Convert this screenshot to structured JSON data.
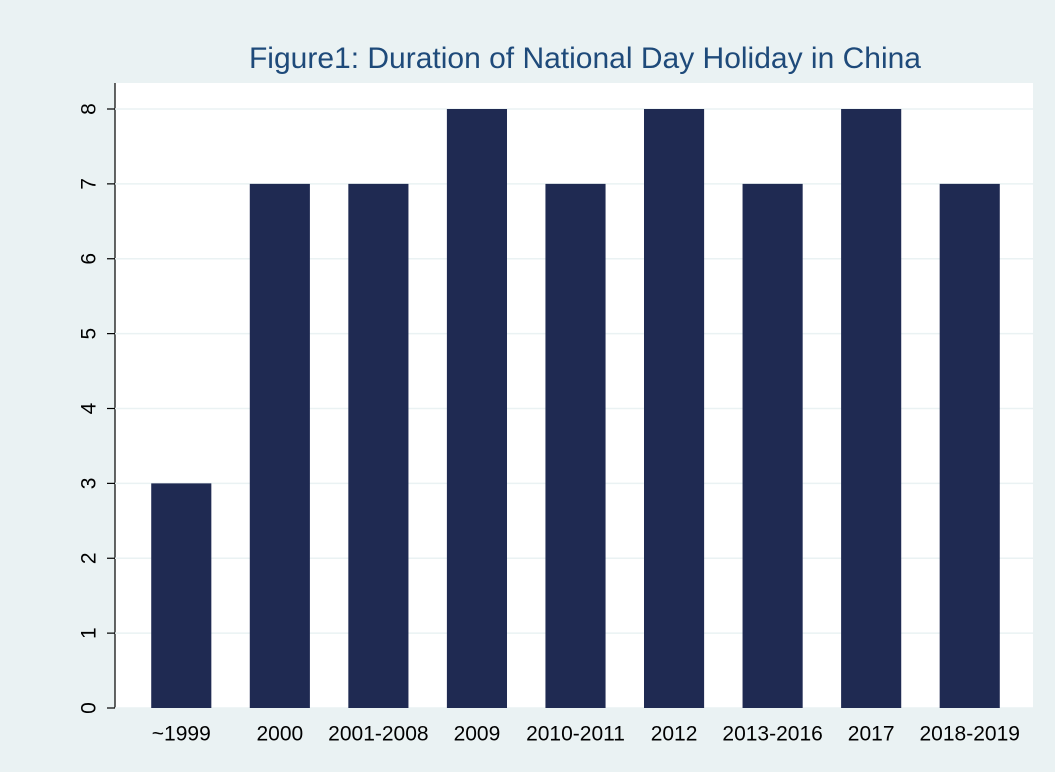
{
  "chart_data": {
    "type": "bar",
    "title": "Figure1: Duration of National Day Holiday in China",
    "categories": [
      "~1999",
      "2000",
      "2001-2008",
      "2009",
      "2010-2011",
      "2012",
      "2013-2016",
      "2017",
      "2018-2019"
    ],
    "values": [
      3,
      7,
      7,
      8,
      7,
      8,
      7,
      8,
      7
    ],
    "color": "#1f2a52",
    "ylim": [
      0,
      8
    ],
    "yticks": [
      0,
      1,
      2,
      3,
      4,
      5,
      6,
      7,
      8
    ],
    "grid": true
  }
}
